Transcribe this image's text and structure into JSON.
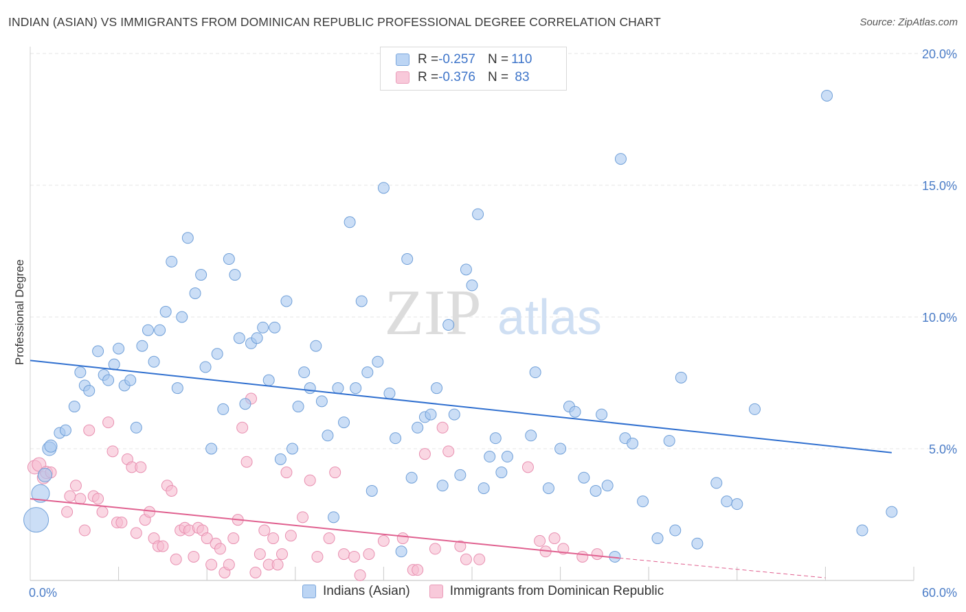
{
  "title": "INDIAN (ASIAN) VS IMMIGRANTS FROM DOMINICAN REPUBLIC PROFESSIONAL DEGREE CORRELATION CHART",
  "source": "Source: ZipAtlas.com",
  "watermark": {
    "part1": "ZIP",
    "part2": "atlas"
  },
  "legend": {
    "rows": [
      {
        "r_label": "R = ",
        "r_value": "-0.257",
        "n_label": "N = ",
        "n_value": "110"
      },
      {
        "r_label": "R = ",
        "r_value": "-0.376",
        "n_label": "N = ",
        "n_value": " 83"
      }
    ]
  },
  "colors": {
    "series1_fill": "#a9c8f0",
    "series1_stroke": "#6f9fd8",
    "series1_line": "#2f6fcf",
    "series2_fill": "#f6bcd0",
    "series2_stroke": "#e88fb0",
    "series2_line": "#e0608f",
    "tick_text": "#4a7cc7",
    "grid": "#e6e6e6"
  },
  "chart_data": {
    "type": "scatter",
    "title": "INDIAN (ASIAN) VS IMMIGRANTS FROM DOMINICAN REPUBLIC PROFESSIONAL DEGREE CORRELATION CHART",
    "xlabel": "",
    "ylabel": "Professional Degree",
    "xlim": [
      0,
      60
    ],
    "ylim": [
      0,
      20
    ],
    "x_ticks": [
      "0.0%",
      "60.0%"
    ],
    "y_ticks": [
      {
        "value": 5,
        "label": "5.0%"
      },
      {
        "value": 10,
        "label": "10.0%"
      },
      {
        "value": 15,
        "label": "15.0%"
      },
      {
        "value": 20,
        "label": "20.0%"
      }
    ],
    "grid": "horizontal dashed",
    "legend_position": "top-center",
    "series": [
      {
        "name": "Indians (Asian)",
        "r": -0.257,
        "n": 110,
        "trend": {
          "x": [
            0,
            58.5
          ],
          "y": [
            8.35,
            4.85
          ],
          "style": "solid"
        },
        "points": [
          [
            0.4,
            2.3,
            18
          ],
          [
            0.7,
            3.3,
            13
          ],
          [
            1.0,
            4.0,
            10
          ],
          [
            1.3,
            5.0,
            10
          ],
          [
            1.4,
            5.1,
            9
          ],
          [
            2.0,
            5.6,
            8
          ],
          [
            2.4,
            5.7,
            8
          ],
          [
            3.0,
            6.6,
            8
          ],
          [
            3.4,
            7.9,
            8
          ],
          [
            3.7,
            7.4,
            8
          ],
          [
            4.0,
            7.2,
            8
          ],
          [
            4.6,
            8.7,
            8
          ],
          [
            5.0,
            7.8,
            8
          ],
          [
            5.3,
            7.6,
            8
          ],
          [
            5.7,
            8.2,
            8
          ],
          [
            6.0,
            8.8,
            8
          ],
          [
            6.4,
            7.4,
            8
          ],
          [
            6.8,
            7.6,
            8
          ],
          [
            7.2,
            5.8,
            8
          ],
          [
            7.6,
            8.9,
            8
          ],
          [
            8.0,
            9.5,
            8
          ],
          [
            8.4,
            8.3,
            8
          ],
          [
            8.8,
            9.5,
            8
          ],
          [
            9.2,
            10.2,
            8
          ],
          [
            9.6,
            12.1,
            8
          ],
          [
            10.0,
            7.3,
            8
          ],
          [
            10.3,
            10.0,
            8
          ],
          [
            10.7,
            13.0,
            8
          ],
          [
            11.2,
            10.9,
            8
          ],
          [
            11.6,
            11.6,
            8
          ],
          [
            11.9,
            8.1,
            8
          ],
          [
            12.3,
            5.0,
            8
          ],
          [
            12.7,
            8.6,
            8
          ],
          [
            13.1,
            6.5,
            8
          ],
          [
            13.5,
            12.2,
            8
          ],
          [
            13.9,
            11.6,
            8
          ],
          [
            14.2,
            9.2,
            8
          ],
          [
            14.6,
            6.7,
            8
          ],
          [
            15.0,
            9.0,
            8
          ],
          [
            15.4,
            9.2,
            8
          ],
          [
            15.8,
            9.6,
            8
          ],
          [
            16.2,
            7.6,
            8
          ],
          [
            16.6,
            9.6,
            8
          ],
          [
            17.0,
            4.6,
            8
          ],
          [
            17.4,
            10.6,
            8
          ],
          [
            17.8,
            5.0,
            8
          ],
          [
            18.2,
            6.6,
            8
          ],
          [
            18.6,
            7.9,
            8
          ],
          [
            19.0,
            7.3,
            8
          ],
          [
            19.4,
            8.9,
            8
          ],
          [
            19.8,
            6.8,
            8
          ],
          [
            20.2,
            5.5,
            8
          ],
          [
            20.6,
            2.4,
            8
          ],
          [
            20.9,
            7.3,
            8
          ],
          [
            21.3,
            6.0,
            8
          ],
          [
            21.7,
            13.6,
            8
          ],
          [
            22.1,
            7.3,
            8
          ],
          [
            22.5,
            10.6,
            8
          ],
          [
            22.9,
            7.9,
            8
          ],
          [
            23.2,
            3.4,
            8
          ],
          [
            23.6,
            8.3,
            8
          ],
          [
            24.0,
            14.9,
            8
          ],
          [
            24.4,
            7.1,
            8
          ],
          [
            24.8,
            5.4,
            8
          ],
          [
            25.2,
            1.1,
            8
          ],
          [
            25.6,
            12.2,
            8
          ],
          [
            25.9,
            3.9,
            8
          ],
          [
            26.3,
            5.8,
            8
          ],
          [
            26.8,
            6.2,
            8
          ],
          [
            27.2,
            6.3,
            8
          ],
          [
            27.6,
            7.3,
            8
          ],
          [
            28.0,
            3.6,
            8
          ],
          [
            28.4,
            9.7,
            8
          ],
          [
            28.8,
            6.3,
            8
          ],
          [
            29.2,
            4.0,
            8
          ],
          [
            29.6,
            11.8,
            8
          ],
          [
            30.0,
            11.2,
            8
          ],
          [
            30.4,
            13.9,
            8
          ],
          [
            30.8,
            3.5,
            8
          ],
          [
            31.2,
            4.7,
            8
          ],
          [
            31.6,
            5.4,
            8
          ],
          [
            32.0,
            4.1,
            8
          ],
          [
            32.4,
            4.7,
            8
          ],
          [
            34.0,
            5.5,
            8
          ],
          [
            34.3,
            7.9,
            8
          ],
          [
            35.2,
            3.5,
            8
          ],
          [
            36.0,
            5.0,
            8
          ],
          [
            36.6,
            6.6,
            8
          ],
          [
            37.0,
            6.4,
            8
          ],
          [
            37.6,
            3.9,
            8
          ],
          [
            38.4,
            3.4,
            8
          ],
          [
            38.8,
            6.3,
            8
          ],
          [
            39.2,
            3.6,
            8
          ],
          [
            39.7,
            0.9,
            8
          ],
          [
            40.1,
            16.0,
            8
          ],
          [
            40.4,
            5.4,
            8
          ],
          [
            40.9,
            5.2,
            8
          ],
          [
            41.6,
            3.0,
            8
          ],
          [
            42.6,
            1.6,
            8
          ],
          [
            43.4,
            5.3,
            8
          ],
          [
            43.8,
            1.9,
            8
          ],
          [
            44.2,
            7.7,
            8
          ],
          [
            45.3,
            1.4,
            8
          ],
          [
            46.6,
            3.7,
            8
          ],
          [
            47.3,
            3.0,
            8
          ],
          [
            48.0,
            2.9,
            8
          ],
          [
            49.2,
            6.5,
            8
          ],
          [
            54.1,
            18.4,
            8
          ],
          [
            56.5,
            1.9,
            8
          ],
          [
            58.5,
            2.6,
            8
          ]
        ]
      },
      {
        "name": "Immigrants from Dominican Republic",
        "r": -0.376,
        "n": 83,
        "trend": {
          "x": [
            0,
            40
          ],
          "y": [
            3.1,
            0.85
          ],
          "style": "solid",
          "dashed_extension_to": [
            54,
            0.1
          ]
        },
        "points": [
          [
            0.3,
            4.3,
            10
          ],
          [
            0.6,
            4.4,
            10
          ],
          [
            0.9,
            3.9,
            9
          ],
          [
            1.1,
            4.1,
            9
          ],
          [
            1.4,
            4.1,
            8
          ],
          [
            2.5,
            2.6,
            8
          ],
          [
            2.7,
            3.2,
            8
          ],
          [
            3.1,
            3.6,
            8
          ],
          [
            3.4,
            3.1,
            8
          ],
          [
            3.7,
            1.9,
            8
          ],
          [
            4.0,
            5.7,
            8
          ],
          [
            4.3,
            3.2,
            8
          ],
          [
            4.6,
            3.1,
            8
          ],
          [
            4.9,
            2.6,
            8
          ],
          [
            5.3,
            6.0,
            8
          ],
          [
            5.6,
            4.9,
            8
          ],
          [
            5.9,
            2.2,
            8
          ],
          [
            6.2,
            2.2,
            8
          ],
          [
            6.6,
            4.6,
            8
          ],
          [
            6.9,
            4.3,
            8
          ],
          [
            7.2,
            1.8,
            8
          ],
          [
            7.5,
            4.3,
            8
          ],
          [
            7.8,
            2.3,
            8
          ],
          [
            8.1,
            2.6,
            8
          ],
          [
            8.4,
            1.6,
            8
          ],
          [
            8.7,
            1.3,
            8
          ],
          [
            9.0,
            1.3,
            8
          ],
          [
            9.3,
            3.6,
            8
          ],
          [
            9.6,
            3.4,
            8
          ],
          [
            9.9,
            0.8,
            8
          ],
          [
            10.2,
            1.9,
            8
          ],
          [
            10.5,
            2.0,
            8
          ],
          [
            10.8,
            1.9,
            8
          ],
          [
            11.1,
            0.9,
            8
          ],
          [
            11.4,
            2.0,
            8
          ],
          [
            11.7,
            1.9,
            8
          ],
          [
            12.0,
            1.6,
            8
          ],
          [
            12.3,
            0.6,
            8
          ],
          [
            12.6,
            1.4,
            8
          ],
          [
            12.9,
            1.2,
            8
          ],
          [
            13.2,
            0.3,
            8
          ],
          [
            13.5,
            0.6,
            8
          ],
          [
            13.8,
            1.6,
            8
          ],
          [
            14.1,
            2.3,
            8
          ],
          [
            14.4,
            5.8,
            8
          ],
          [
            14.7,
            4.5,
            8
          ],
          [
            15.0,
            6.9,
            8
          ],
          [
            15.3,
            0.3,
            8
          ],
          [
            15.6,
            1.0,
            8
          ],
          [
            15.9,
            1.9,
            8
          ],
          [
            16.2,
            0.6,
            8
          ],
          [
            16.5,
            1.6,
            8
          ],
          [
            16.8,
            0.6,
            8
          ],
          [
            17.1,
            1.0,
            8
          ],
          [
            17.4,
            4.1,
            8
          ],
          [
            17.7,
            1.7,
            8
          ],
          [
            18.5,
            2.4,
            8
          ],
          [
            19.0,
            3.8,
            8
          ],
          [
            19.5,
            0.9,
            8
          ],
          [
            20.3,
            1.6,
            8
          ],
          [
            20.7,
            4.1,
            8
          ],
          [
            21.3,
            1.0,
            8
          ],
          [
            22.0,
            0.9,
            8
          ],
          [
            22.4,
            0.2,
            8
          ],
          [
            23.0,
            1.0,
            8
          ],
          [
            24.0,
            1.5,
            8
          ],
          [
            25.3,
            1.6,
            8
          ],
          [
            26.0,
            0.4,
            8
          ],
          [
            26.3,
            0.4,
            8
          ],
          [
            26.8,
            4.8,
            8
          ],
          [
            27.5,
            1.2,
            8
          ],
          [
            28.0,
            5.8,
            8
          ],
          [
            28.4,
            4.9,
            8
          ],
          [
            29.2,
            1.3,
            8
          ],
          [
            29.6,
            0.8,
            8
          ],
          [
            30.5,
            0.8,
            8
          ],
          [
            33.8,
            4.3,
            8
          ],
          [
            34.6,
            1.5,
            8
          ],
          [
            35.0,
            1.1,
            8
          ],
          [
            35.6,
            1.6,
            8
          ],
          [
            36.2,
            1.2,
            8
          ],
          [
            37.5,
            0.9,
            8
          ],
          [
            38.5,
            1.0,
            8
          ]
        ]
      }
    ]
  },
  "bottom_legend": [
    {
      "label": "Indians (Asian)"
    },
    {
      "label": "Immigrants from Dominican Republic"
    }
  ]
}
